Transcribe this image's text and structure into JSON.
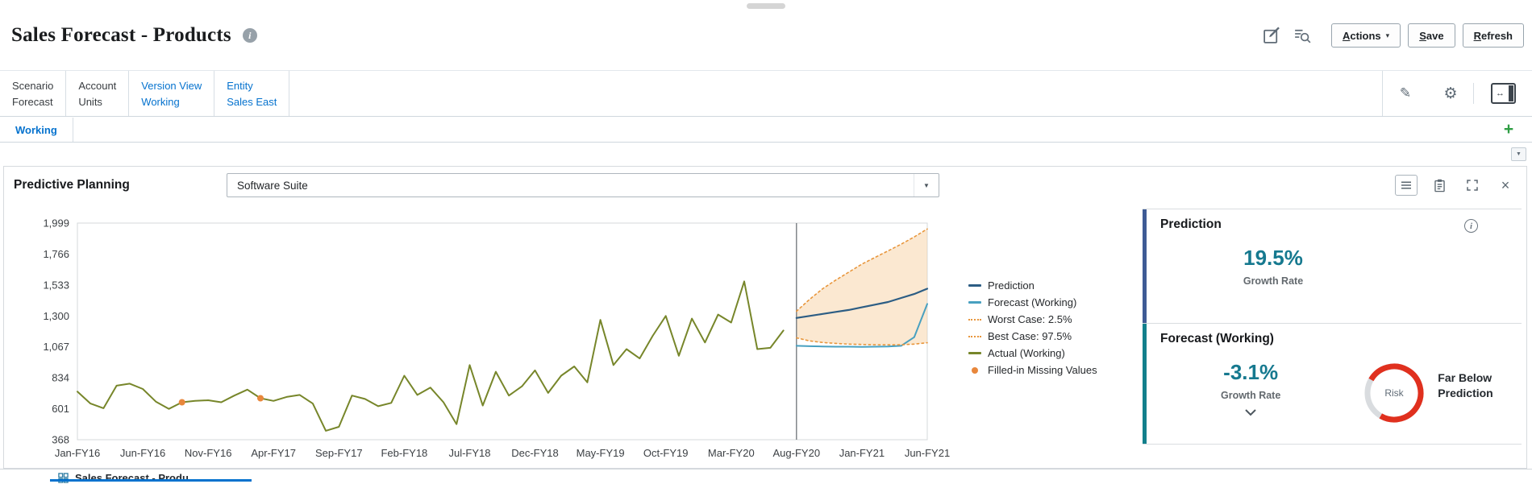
{
  "page": {
    "title": "Sales Forecast - Products"
  },
  "header": {
    "actions_label": "Actions",
    "save_label": "Save",
    "refresh_label": "Refresh"
  },
  "pov": {
    "dims": [
      {
        "label": "Scenario",
        "value": "Forecast",
        "link": false
      },
      {
        "label": "Account",
        "value": "Units",
        "link": false
      },
      {
        "label": "Version View",
        "value": "Working",
        "link": true
      },
      {
        "label": "Entity",
        "value": "Sales East",
        "link": true
      }
    ]
  },
  "tab_strip": {
    "active_tab": "Working"
  },
  "panel": {
    "title": "Predictive Planning",
    "member_selector_value": "Software Suite"
  },
  "legend": [
    {
      "label": "Prediction",
      "swatch": "line",
      "color": "#2c5d84"
    },
    {
      "label": "Forecast (Working)",
      "swatch": "line",
      "color": "#48a0c0"
    },
    {
      "label": "Worst Case: 2.5%",
      "swatch": "dotted",
      "color": "#e8963c"
    },
    {
      "label": "Best Case: 97.5%",
      "swatch": "dotted",
      "color": "#e8963c"
    },
    {
      "label": "Actual (Working)",
      "swatch": "line",
      "color": "#77862a"
    },
    {
      "label": "Filled-in Missing Values",
      "swatch": "dot",
      "color": "#e8873c"
    }
  ],
  "cards": {
    "prediction": {
      "title": "Prediction",
      "value": "19.5%",
      "caption": "Growth Rate"
    },
    "forecast": {
      "title": "Forecast (Working)",
      "value": "-3.1%",
      "caption": "Growth Rate",
      "risk_label": "Risk",
      "risk_status": "Far Below Prediction"
    }
  },
  "bottom_tabs": {
    "active_label": "Sales Forecast - Produ"
  },
  "icons": {
    "info_glyph": "i",
    "caret_down": "▾",
    "dropdown_arrow": "▼",
    "scroll_down": "▼",
    "close": "×",
    "pov_collapse_arrow": "↔",
    "add": "+",
    "pencil": "✎",
    "gear": "⚙"
  },
  "colors": {
    "link": "#0572ce",
    "value_teal": "#16798f",
    "prediction_accent": "#3e5b95",
    "forecast_accent": "#12808c",
    "gauge_red": "#e0301e",
    "add_green": "#2f9e44"
  },
  "chart_data": {
    "type": "line",
    "title": "",
    "xlabel": "",
    "ylabel": "",
    "ylim": [
      368,
      1999
    ],
    "y_ticks": [
      368,
      601,
      834,
      1067,
      1300,
      1533,
      1766,
      1999
    ],
    "y_tick_labels": [
      "368",
      "601",
      "834",
      "1,067",
      "1,300",
      "1,533",
      "1,766",
      "1,999"
    ],
    "n_points": 66,
    "x_tick_positions": [
      0,
      5,
      10,
      15,
      20,
      25,
      30,
      35,
      40,
      45,
      50,
      55,
      60,
      65
    ],
    "x_tick_labels": [
      "Jan-FY16",
      "Jun-FY16",
      "Nov-FY16",
      "Apr-FY17",
      "Sep-FY17",
      "Feb-FY18",
      "Jul-FY18",
      "Dec-FY18",
      "May-FY19",
      "Oct-FY19",
      "Mar-FY20",
      "Aug-FY20",
      "Jan-FY21",
      "Jun-FY21"
    ],
    "separator_index": 55,
    "grid": false,
    "legend_position": "right",
    "band": {
      "fill": "#f7d1a3",
      "opacity": 0.5
    },
    "series": [
      {
        "name": "Actual (Working)",
        "color": "#77862a",
        "style": "solid",
        "width": 2,
        "start": 0,
        "values": [
          730,
          640,
          605,
          775,
          790,
          750,
          655,
          600,
          650,
          660,
          665,
          650,
          700,
          745,
          680,
          660,
          690,
          705,
          640,
          435,
          465,
          700,
          675,
          620,
          645,
          850,
          705,
          760,
          650,
          485,
          930,
          625,
          880,
          700,
          770,
          890,
          720,
          850,
          920,
          800,
          1270,
          930,
          1050,
          980,
          1150,
          1300,
          1000,
          1280,
          1100,
          1310,
          1250,
          1560,
          1050,
          1060,
          1190
        ]
      },
      {
        "name": "Prediction",
        "color": "#2c5d84",
        "style": "solid",
        "width": 2.2,
        "start": 55,
        "values": [
          1285,
          1300,
          1315,
          1330,
          1345,
          1365,
          1385,
          1405,
          1435,
          1465,
          1505
        ]
      },
      {
        "name": "Forecast (Working)",
        "color": "#48a0c0",
        "style": "solid",
        "width": 2,
        "start": 55,
        "values": [
          1075,
          1072,
          1070,
          1068,
          1068,
          1067,
          1068,
          1070,
          1075,
          1140,
          1390
        ]
      },
      {
        "name": "Worst Case: 2.5%",
        "color": "#e8963c",
        "style": "dotted",
        "width": 1.6,
        "start": 55,
        "band_edge": "lower",
        "values": [
          1135,
          1112,
          1100,
          1093,
          1088,
          1085,
          1083,
          1082,
          1083,
          1088,
          1098
        ]
      },
      {
        "name": "Best Case: 97.5%",
        "color": "#e8963c",
        "style": "dotted",
        "width": 1.6,
        "start": 55,
        "band_edge": "upper",
        "values": [
          1335,
          1425,
          1505,
          1570,
          1630,
          1690,
          1740,
          1790,
          1840,
          1895,
          1955
        ]
      }
    ],
    "filled_in_missing": {
      "color": "#e8873c",
      "points": [
        {
          "index": 8,
          "value": 650
        },
        {
          "index": 14,
          "value": 680
        }
      ]
    }
  }
}
